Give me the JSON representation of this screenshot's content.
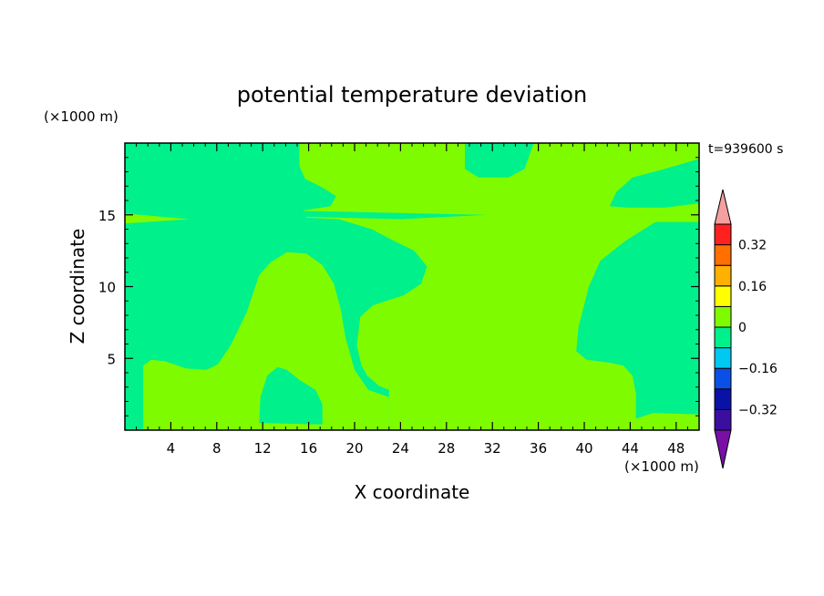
{
  "chart_data": {
    "type": "heatmap",
    "title": "potential temperature deviation",
    "xlabel": "X coordinate",
    "ylabel": "Z coordinate",
    "x_unit": "(×1000 m)",
    "y_unit": "(×1000 m)",
    "time_label": "t=939600 s",
    "xlim": [
      0,
      50
    ],
    "ylim": [
      0,
      20
    ],
    "x_ticks": [
      4,
      8,
      12,
      16,
      20,
      24,
      28,
      32,
      36,
      40,
      44,
      48
    ],
    "y_ticks": [
      5,
      10,
      15
    ],
    "colorbar": {
      "levels": [
        -0.48,
        -0.4,
        -0.32,
        -0.24,
        -0.16,
        -0.08,
        0,
        0.08,
        0.16,
        0.24,
        0.32,
        0.4,
        0.48
      ],
      "colors": [
        "#7a0fa8",
        "#3a0fa0",
        "#0a12a6",
        "#0a50e6",
        "#00c8f0",
        "#00f08c",
        "#7ffb00",
        "#ffff00",
        "#ffb000",
        "#ff7000",
        "#ff2020",
        "#f5a0a0"
      ],
      "labels": [
        {
          "value": -0.32,
          "text": "−0.32"
        },
        {
          "value": -0.16,
          "text": "−0.16"
        },
        {
          "value": 0,
          "text": "0"
        },
        {
          "value": 0.16,
          "text": "0.16"
        },
        {
          "value": 0.32,
          "text": "0.32"
        }
      ]
    },
    "background_class": {
      "range": [
        -0.08,
        0
      ],
      "color": "#00f08c"
    },
    "regions": [
      {
        "class": [
          0,
          0.08
        ],
        "color": "#7ffb00",
        "name": "upper-central-warm",
        "poly": [
          [
            15.2,
            20
          ],
          [
            29.6,
            20
          ],
          [
            29.6,
            18.2
          ],
          [
            30.8,
            17.6
          ],
          [
            33.4,
            17.6
          ],
          [
            34.8,
            18.2
          ],
          [
            35.6,
            20
          ],
          [
            50,
            20
          ],
          [
            50,
            18.9
          ],
          [
            47,
            18.2
          ],
          [
            44.2,
            17.6
          ],
          [
            42.8,
            16.6
          ],
          [
            42.2,
            15.6
          ],
          [
            43.8,
            15.5
          ],
          [
            50,
            15.5
          ],
          [
            50,
            14.5
          ],
          [
            46.2,
            14.5
          ],
          [
            43.6,
            13.2
          ],
          [
            41.4,
            11.8
          ],
          [
            40.4,
            10
          ],
          [
            39.5,
            7.2
          ],
          [
            39.3,
            5.5
          ],
          [
            40.2,
            4.9
          ],
          [
            42.2,
            4.7
          ],
          [
            43.4,
            4.5
          ],
          [
            44.2,
            3.8
          ],
          [
            44.5,
            2.5
          ],
          [
            44.5,
            0
          ],
          [
            23,
            0
          ],
          [
            23,
            2.8
          ],
          [
            22.1,
            3.1
          ],
          [
            21.1,
            3.8
          ],
          [
            20.6,
            4.5
          ],
          [
            20.2,
            5.9
          ],
          [
            20.5,
            7.9
          ],
          [
            21.6,
            8.7
          ],
          [
            24.3,
            9.4
          ],
          [
            25.8,
            10.2
          ],
          [
            26.3,
            11.4
          ],
          [
            25.2,
            12.5
          ],
          [
            23.4,
            13.2
          ],
          [
            21.5,
            14
          ],
          [
            18.6,
            14.7
          ],
          [
            15.8,
            14.8
          ],
          [
            15.5,
            15.3
          ],
          [
            17.9,
            15.6
          ],
          [
            18.4,
            16.3
          ],
          [
            17.2,
            16.9
          ],
          [
            15.7,
            17.5
          ],
          [
            15.2,
            18.4
          ]
        ]
      },
      {
        "class": [
          0,
          0.08
        ],
        "color": "#7ffb00",
        "name": "left-lower-warm",
        "poly": [
          [
            1.6,
            0
          ],
          [
            1.6,
            4.5
          ],
          [
            2.3,
            4.9
          ],
          [
            3.5,
            4.8
          ],
          [
            5.3,
            4.3
          ],
          [
            7.1,
            4.2
          ],
          [
            8.1,
            4.6
          ],
          [
            9.2,
            5.9
          ],
          [
            10.6,
            8.2
          ],
          [
            11.7,
            10.8
          ],
          [
            12.7,
            11.7
          ],
          [
            14.1,
            12.4
          ],
          [
            15.8,
            12.3
          ],
          [
            17.2,
            11.5
          ],
          [
            18.2,
            10.2
          ],
          [
            18.8,
            8.4
          ],
          [
            19.2,
            6.5
          ],
          [
            20.0,
            4.2
          ],
          [
            21.2,
            2.8
          ],
          [
            23,
            2.3
          ],
          [
            23,
            0
          ]
        ]
      },
      {
        "class": [
          0,
          0.08
        ],
        "color": "#7ffb00",
        "name": "right-lower-warm",
        "poly": [
          [
            31.9,
            0
          ],
          [
            31.9,
            2.9
          ],
          [
            32.8,
            3.4
          ],
          [
            34.4,
            3.4
          ],
          [
            35.5,
            2.8
          ],
          [
            36.4,
            1.6
          ],
          [
            36.9,
            0.6
          ],
          [
            37.2,
            0
          ]
        ]
      },
      {
        "class": [
          0,
          0.08
        ],
        "color": "#7ffb00",
        "name": "far-right-warm",
        "poly": [
          [
            44.5,
            0
          ],
          [
            44.5,
            0.8
          ],
          [
            46,
            1.2
          ],
          [
            50,
            1.1
          ],
          [
            50,
            0
          ]
        ]
      },
      {
        "class": [
          0,
          0.08
        ],
        "color": "#7ffb00",
        "name": "tongue-upper-left",
        "poly": [
          [
            0,
            15.1
          ],
          [
            5.6,
            14.7
          ],
          [
            0,
            14.4
          ]
        ]
      },
      {
        "class": [
          0,
          0.08
        ],
        "color": "#7ffb00",
        "name": "tongue-upper-right",
        "poly": [
          [
            50,
            15.8
          ],
          [
            45,
            15.3
          ],
          [
            50,
            14.9
          ]
        ]
      },
      {
        "class": [
          -0.08,
          0
        ],
        "color": "#00f08c",
        "name": "cool-pocket-left",
        "poly": [
          [
            11.7,
            0.5
          ],
          [
            11.8,
            2.3
          ],
          [
            12.4,
            3.8
          ],
          [
            13.3,
            4.4
          ],
          [
            14.1,
            4.2
          ],
          [
            15.2,
            3.5
          ],
          [
            16.6,
            2.8
          ],
          [
            17.2,
            1.8
          ],
          [
            17.2,
            0.4
          ]
        ]
      },
      {
        "class": [
          -0.08,
          0
        ],
        "color": "#00f08c",
        "name": "cool-pocket-inner",
        "poly": [
          [
            12.2,
            0.6
          ],
          [
            12.3,
            1.8
          ],
          [
            13.1,
            2.4
          ],
          [
            14.0,
            2.4
          ],
          [
            14.3,
            1.5
          ],
          [
            14.2,
            0.5
          ]
        ]
      },
      {
        "class": [
          -0.08,
          0
        ],
        "color": "#00f08c",
        "name": "cool-tongue-upper",
        "poly": [
          [
            13.8,
            15.3
          ],
          [
            31.5,
            15.0
          ],
          [
            24,
            14.7
          ],
          [
            13.8,
            14.9
          ]
        ]
      },
      {
        "class": [
          -0.08,
          0
        ],
        "color": "#00f08c",
        "name": "cool-tongue-right",
        "poly": [
          [
            43.6,
            16.4
          ],
          [
            50,
            16.9
          ],
          [
            50,
            16.2
          ],
          [
            46,
            15.9
          ]
        ]
      },
      {
        "class": [
          -0.08,
          0
        ],
        "color": "#00f08c",
        "name": "cool-spot-right",
        "poly": [
          [
            48.3,
            9.4
          ],
          [
            47.8,
            10.3
          ],
          [
            48.3,
            11.3
          ],
          [
            49.6,
            11.4
          ],
          [
            49.9,
            9.8
          ],
          [
            49.3,
            9.3
          ]
        ]
      }
    ]
  }
}
